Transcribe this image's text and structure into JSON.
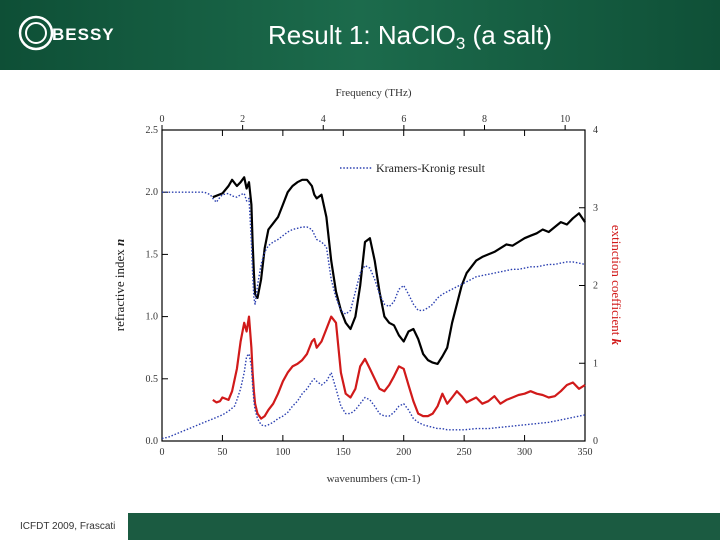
{
  "slide": {
    "title_text": "Result 1: NaClO",
    "title_sub": "3",
    "title_tail": " (a salt)",
    "logo_text": "BESSY",
    "footer": "ICFDT 2009, Frascati"
  },
  "colors": {
    "header": "#155e43",
    "black": "#000000",
    "red": "#d11a1a",
    "blue": "#2a3fb0",
    "k_label": "#d11a1a"
  },
  "chart_data": {
    "type": "line",
    "top_axis_label": "Frequency (THz)",
    "top_ticks": [
      "0",
      "2",
      "4",
      "6",
      "8",
      "10"
    ],
    "xlabel": "wavenumbers (cm-1)",
    "x_ticks": [
      "0",
      "50",
      "100",
      "150",
      "200",
      "250",
      "300",
      "350"
    ],
    "xlim": [
      0,
      350
    ],
    "ylabel_left": "refractive index",
    "ylabel_left_sym": "n",
    "y_ticks_left": [
      "0.0",
      "0.5",
      "1.0",
      "1.5",
      "2.0",
      "2.5"
    ],
    "ylim_left": [
      0,
      2.5
    ],
    "ylabel_right": "extinction coefficient",
    "ylabel_right_sym": "k",
    "y_ticks_right": [
      "0",
      "1",
      "2",
      "3",
      "4"
    ],
    "ylim_right": [
      0,
      4
    ],
    "legend": "Kramers-Kronig result",
    "series": [
      {
        "axis": "left",
        "style": "solid",
        "color": "#000000",
        "x": [
          42,
          50,
          55,
          58,
          62,
          65,
          68,
          70,
          72,
          74,
          75,
          76,
          77,
          79,
          82,
          85,
          88,
          92,
          96,
          100,
          104,
          108,
          112,
          116,
          120,
          124,
          126,
          128,
          132,
          136,
          140,
          144,
          148,
          152,
          156,
          160,
          164,
          168,
          172,
          176,
          180,
          184,
          188,
          192,
          196,
          200,
          204,
          208,
          212,
          216,
          220,
          224,
          228,
          232,
          236,
          240,
          244,
          248,
          252,
          256,
          260,
          265,
          270,
          275,
          280,
          285,
          290,
          295,
          300,
          305,
          310,
          315,
          320,
          325,
          330,
          335,
          340,
          345,
          350
        ],
        "y": [
          1.96,
          1.99,
          2.05,
          2.1,
          2.05,
          2.08,
          2.12,
          2.03,
          2.08,
          1.9,
          1.6,
          1.35,
          1.18,
          1.15,
          1.3,
          1.55,
          1.7,
          1.75,
          1.8,
          1.9,
          2.0,
          2.05,
          2.08,
          2.1,
          2.1,
          2.05,
          1.98,
          1.95,
          1.98,
          1.8,
          1.45,
          1.2,
          1.05,
          0.95,
          0.9,
          1.0,
          1.25,
          1.6,
          1.63,
          1.45,
          1.2,
          1.0,
          0.95,
          0.93,
          0.85,
          0.8,
          0.88,
          0.9,
          0.82,
          0.7,
          0.65,
          0.63,
          0.62,
          0.68,
          0.75,
          0.95,
          1.1,
          1.25,
          1.35,
          1.4,
          1.45,
          1.48,
          1.5,
          1.52,
          1.55,
          1.58,
          1.57,
          1.6,
          1.63,
          1.65,
          1.67,
          1.7,
          1.68,
          1.72,
          1.76,
          1.74,
          1.79,
          1.83,
          1.76
        ]
      },
      {
        "axis": "left",
        "style": "dotted",
        "color": "#2a3fb0",
        "x": [
          0,
          5,
          10,
          15,
          20,
          25,
          30,
          35,
          40,
          42,
          45,
          48,
          50,
          55,
          58,
          62,
          65,
          68,
          70,
          72,
          74,
          75,
          76,
          77,
          79,
          82,
          85,
          88,
          92,
          96,
          100,
          104,
          108,
          112,
          116,
          120,
          124,
          126,
          128,
          132,
          136,
          140,
          144,
          148,
          152,
          156,
          160,
          164,
          168,
          172,
          176,
          180,
          184,
          188,
          192,
          196,
          200,
          204,
          208,
          212,
          216,
          220,
          224,
          228,
          232,
          236,
          240,
          244,
          248,
          252,
          256,
          260,
          265,
          270,
          275,
          280,
          285,
          290,
          295,
          300,
          305,
          310,
          315,
          320,
          325,
          330,
          335,
          340,
          345,
          350
        ],
        "y": [
          2.0,
          2.0,
          2.0,
          2.0,
          2.0,
          2.0,
          2.0,
          2.0,
          1.98,
          1.95,
          1.92,
          1.96,
          1.98,
          1.99,
          1.97,
          1.96,
          1.98,
          1.99,
          1.93,
          1.95,
          1.6,
          1.35,
          1.15,
          1.1,
          1.25,
          1.42,
          1.52,
          1.57,
          1.6,
          1.62,
          1.65,
          1.68,
          1.7,
          1.71,
          1.72,
          1.72,
          1.7,
          1.66,
          1.62,
          1.6,
          1.56,
          1.3,
          1.15,
          1.05,
          1.02,
          1.05,
          1.2,
          1.35,
          1.41,
          1.39,
          1.3,
          1.18,
          1.1,
          1.08,
          1.12,
          1.22,
          1.25,
          1.18,
          1.1,
          1.05,
          1.05,
          1.07,
          1.1,
          1.15,
          1.18,
          1.2,
          1.22,
          1.24,
          1.26,
          1.28,
          1.3,
          1.32,
          1.33,
          1.34,
          1.35,
          1.36,
          1.37,
          1.38,
          1.38,
          1.39,
          1.4,
          1.4,
          1.41,
          1.42,
          1.42,
          1.43,
          1.44,
          1.44,
          1.43,
          1.42
        ]
      },
      {
        "axis": "left",
        "style": "solid",
        "color": "#d11a1a",
        "x": [
          42,
          45,
          48,
          50,
          55,
          58,
          62,
          65,
          68,
          70,
          72,
          74,
          75,
          76,
          77,
          79,
          82,
          85,
          88,
          92,
          96,
          100,
          104,
          108,
          112,
          116,
          120,
          124,
          126,
          128,
          132,
          136,
          140,
          144,
          148,
          152,
          156,
          160,
          164,
          168,
          172,
          176,
          180,
          184,
          188,
          192,
          196,
          200,
          204,
          208,
          212,
          216,
          220,
          224,
          228,
          232,
          236,
          240,
          244,
          248,
          252,
          256,
          260,
          265,
          270,
          275,
          280,
          285,
          290,
          295,
          300,
          305,
          310,
          315,
          320,
          325,
          330,
          335,
          340,
          345,
          350
        ],
        "y": [
          0.33,
          0.31,
          0.32,
          0.35,
          0.33,
          0.4,
          0.58,
          0.8,
          0.95,
          0.88,
          1.0,
          0.75,
          0.55,
          0.4,
          0.3,
          0.22,
          0.18,
          0.2,
          0.25,
          0.3,
          0.38,
          0.48,
          0.55,
          0.6,
          0.62,
          0.65,
          0.7,
          0.8,
          0.82,
          0.75,
          0.8,
          0.9,
          1.0,
          0.95,
          0.55,
          0.38,
          0.35,
          0.42,
          0.6,
          0.66,
          0.58,
          0.5,
          0.42,
          0.4,
          0.45,
          0.52,
          0.6,
          0.58,
          0.45,
          0.32,
          0.22,
          0.2,
          0.2,
          0.22,
          0.28,
          0.38,
          0.3,
          0.35,
          0.4,
          0.36,
          0.31,
          0.33,
          0.35,
          0.3,
          0.32,
          0.36,
          0.3,
          0.33,
          0.35,
          0.37,
          0.38,
          0.4,
          0.38,
          0.37,
          0.35,
          0.36,
          0.4,
          0.45,
          0.47,
          0.42,
          0.45
        ]
      },
      {
        "axis": "left",
        "style": "dotted",
        "color": "#2a3fb0",
        "x": [
          0,
          5,
          10,
          15,
          20,
          25,
          30,
          35,
          40,
          45,
          50,
          55,
          60,
          62,
          65,
          68,
          70,
          72,
          74,
          75,
          76,
          77,
          79,
          82,
          85,
          88,
          92,
          96,
          100,
          104,
          108,
          112,
          116,
          120,
          124,
          126,
          128,
          132,
          136,
          140,
          144,
          148,
          152,
          156,
          160,
          164,
          168,
          172,
          176,
          180,
          184,
          188,
          192,
          196,
          200,
          204,
          208,
          212,
          216,
          220,
          224,
          228,
          232,
          236,
          240,
          250,
          260,
          270,
          280,
          290,
          300,
          310,
          320,
          330,
          340,
          350
        ],
        "y": [
          0.02,
          0.03,
          0.05,
          0.07,
          0.09,
          0.11,
          0.13,
          0.15,
          0.17,
          0.19,
          0.21,
          0.24,
          0.28,
          0.33,
          0.42,
          0.55,
          0.68,
          0.7,
          0.6,
          0.45,
          0.32,
          0.25,
          0.18,
          0.13,
          0.12,
          0.13,
          0.15,
          0.18,
          0.2,
          0.23,
          0.28,
          0.32,
          0.38,
          0.42,
          0.48,
          0.5,
          0.48,
          0.45,
          0.48,
          0.55,
          0.42,
          0.28,
          0.22,
          0.22,
          0.25,
          0.3,
          0.35,
          0.33,
          0.28,
          0.22,
          0.2,
          0.2,
          0.23,
          0.28,
          0.3,
          0.25,
          0.18,
          0.15,
          0.13,
          0.12,
          0.11,
          0.1,
          0.1,
          0.09,
          0.09,
          0.09,
          0.1,
          0.1,
          0.11,
          0.12,
          0.13,
          0.14,
          0.15,
          0.17,
          0.19,
          0.21
        ]
      }
    ]
  }
}
